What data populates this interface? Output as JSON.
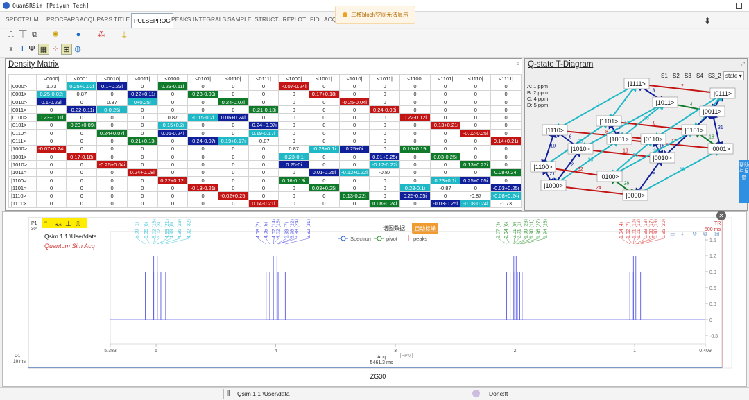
{
  "app": {
    "title": "QuanSRSim [Peiyun Tech]"
  },
  "tabs": [
    "SPECTRUM",
    "PROCPARS",
    "ACQUPARS",
    "TITLE",
    "PULSEPROG",
    "PEAKS",
    "INTEGRALS",
    "SAMPLE",
    "STRUCTURE",
    "PLOT",
    "FID",
    "ACQ"
  ],
  "active_tab": "PULSEPROG",
  "toast": {
    "text": "三核bloch空间无法显示"
  },
  "density": {
    "title": "Density Matrix",
    "cols": [
      "<0000|",
      "<0001|",
      "<0010|",
      "<0011|",
      "<0100|",
      "<0101|",
      "<0110|",
      "<0111|",
      "<1000|",
      "<1001|",
      "<1010|",
      "<1011|",
      "<1100|",
      "<1101|",
      "<1110|",
      "<1111|"
    ],
    "rows": [
      {
        "h": "|0000>",
        "c": [
          [
            "1.73",
            ""
          ],
          [
            "0.25+0.02i",
            "c"
          ],
          [
            "0.1+0.23i",
            "n"
          ],
          [
            "0",
            ""
          ],
          [
            "0.23-0.11i",
            "g"
          ],
          [
            "0",
            ""
          ],
          [
            "0",
            ""
          ],
          [
            "0",
            ""
          ],
          [
            "-0.07-0.24i",
            "r"
          ],
          [
            "0",
            ""
          ],
          [
            "0",
            ""
          ],
          [
            "0",
            ""
          ],
          [
            "0",
            ""
          ],
          [
            "0",
            ""
          ],
          [
            "0",
            ""
          ],
          [
            "0",
            ""
          ]
        ]
      },
      {
        "h": "|0001>",
        "c": [
          [
            "0.25-0.02i",
            "c"
          ],
          [
            "0.87",
            ""
          ],
          [
            "0",
            ""
          ],
          [
            "-0.22+0.11i",
            "n"
          ],
          [
            "0",
            ""
          ],
          [
            "-0.23-0.09i",
            "g"
          ],
          [
            "0",
            ""
          ],
          [
            "0",
            ""
          ],
          [
            "0",
            ""
          ],
          [
            "0.17+0.18i",
            "r"
          ],
          [
            "0",
            ""
          ],
          [
            "0",
            ""
          ],
          [
            "0",
            ""
          ],
          [
            "0",
            ""
          ],
          [
            "0",
            ""
          ],
          [
            "0",
            ""
          ]
        ]
      },
      {
        "h": "|0010>",
        "c": [
          [
            "0.1-0.23i",
            "n"
          ],
          [
            "0",
            ""
          ],
          [
            "0.87",
            ""
          ],
          [
            "0+0.25i",
            "c"
          ],
          [
            "0",
            ""
          ],
          [
            "0",
            ""
          ],
          [
            "0.24-0.07i",
            "g"
          ],
          [
            "0",
            ""
          ],
          [
            "0",
            ""
          ],
          [
            "0",
            ""
          ],
          [
            "-0.25-0.04i",
            "r"
          ],
          [
            "0",
            ""
          ],
          [
            "0",
            ""
          ],
          [
            "0",
            ""
          ],
          [
            "0",
            ""
          ],
          [
            "0",
            ""
          ]
        ]
      },
      {
        "h": "|0011>",
        "c": [
          [
            "0",
            ""
          ],
          [
            "-0.22-0.11i",
            "n"
          ],
          [
            "0-0.25i",
            "c"
          ],
          [
            "0",
            ""
          ],
          [
            "0",
            ""
          ],
          [
            "0",
            ""
          ],
          [
            "0",
            ""
          ],
          [
            "-0.21-0.13i",
            "g"
          ],
          [
            "0",
            ""
          ],
          [
            "0",
            ""
          ],
          [
            "0",
            ""
          ],
          [
            "0.24-0.08i",
            "r"
          ],
          [
            "0",
            ""
          ],
          [
            "0",
            ""
          ],
          [
            "0",
            ""
          ],
          [
            "0",
            ""
          ]
        ]
      },
      {
        "h": "|0100>",
        "c": [
          [
            "0.23+0.11i",
            "g"
          ],
          [
            "0",
            ""
          ],
          [
            "0",
            ""
          ],
          [
            "0",
            ""
          ],
          [
            "0.87",
            ""
          ],
          [
            "-0.15-0.2i",
            "c"
          ],
          [
            "0.06+0.24i",
            "n"
          ],
          [
            "0",
            ""
          ],
          [
            "0",
            ""
          ],
          [
            "0",
            ""
          ],
          [
            "0",
            ""
          ],
          [
            "0",
            ""
          ],
          [
            "0.22-0.12i",
            "r"
          ],
          [
            "0",
            ""
          ],
          [
            "0",
            ""
          ],
          [
            "0",
            ""
          ]
        ]
      },
      {
        "h": "|0101>",
        "c": [
          [
            "0",
            ""
          ],
          [
            "-0.23+0.09i",
            "g"
          ],
          [
            "0",
            ""
          ],
          [
            "0",
            ""
          ],
          [
            "-0.15+0.2i",
            "c"
          ],
          [
            "0",
            ""
          ],
          [
            "0",
            ""
          ],
          [
            "-0.24+0.07i",
            "n"
          ],
          [
            "0",
            ""
          ],
          [
            "0",
            ""
          ],
          [
            "0",
            ""
          ],
          [
            "0",
            ""
          ],
          [
            "0",
            ""
          ],
          [
            "-0.13+0.21i",
            "r"
          ],
          [
            "0",
            ""
          ],
          [
            "0",
            ""
          ]
        ]
      },
      {
        "h": "|0110>",
        "c": [
          [
            "0",
            ""
          ],
          [
            "0",
            ""
          ],
          [
            "0.24+0.07i",
            "g"
          ],
          [
            "0",
            ""
          ],
          [
            "0.06-0.24i",
            "n"
          ],
          [
            "0",
            ""
          ],
          [
            "0",
            ""
          ],
          [
            "0.19-0.17i",
            "c"
          ],
          [
            "0",
            ""
          ],
          [
            "0",
            ""
          ],
          [
            "0",
            ""
          ],
          [
            "0",
            ""
          ],
          [
            "0",
            ""
          ],
          [
            "0",
            ""
          ],
          [
            "-0.02-0.25i",
            "r"
          ],
          [
            "0",
            ""
          ]
        ]
      },
      {
        "h": "|0111>",
        "c": [
          [
            "0",
            ""
          ],
          [
            "0",
            ""
          ],
          [
            "0",
            ""
          ],
          [
            "-0.21+0.13i",
            "g"
          ],
          [
            "0",
            ""
          ],
          [
            "-0.24-0.07i",
            "n"
          ],
          [
            "0.19+0.17i",
            "c"
          ],
          [
            "-0.87",
            ""
          ],
          [
            "0",
            ""
          ],
          [
            "0",
            ""
          ],
          [
            "0",
            ""
          ],
          [
            "0",
            ""
          ],
          [
            "0",
            ""
          ],
          [
            "0",
            ""
          ],
          [
            "0",
            ""
          ],
          [
            "0.14+0.21i",
            "r"
          ]
        ]
      },
      {
        "h": "|1000>",
        "c": [
          [
            "-0.07+0.24i",
            "r"
          ],
          [
            "0",
            ""
          ],
          [
            "0",
            ""
          ],
          [
            "0",
            ""
          ],
          [
            "0",
            ""
          ],
          [
            "0",
            ""
          ],
          [
            "0",
            ""
          ],
          [
            "0",
            ""
          ],
          [
            "0.87",
            ""
          ],
          [
            "-0.23+0.1i",
            "c"
          ],
          [
            "0.25+0i",
            "n"
          ],
          [
            "0",
            ""
          ],
          [
            "0.16+0.19i",
            "g"
          ],
          [
            "0",
            ""
          ],
          [
            "0",
            ""
          ],
          [
            "0",
            ""
          ]
        ]
      },
      {
        "h": "|1001>",
        "c": [
          [
            "0",
            ""
          ],
          [
            "0.17-0.18i",
            "r"
          ],
          [
            "0",
            ""
          ],
          [
            "0",
            ""
          ],
          [
            "0",
            ""
          ],
          [
            "0",
            ""
          ],
          [
            "0",
            ""
          ],
          [
            "0",
            ""
          ],
          [
            "-0.23-0.1i",
            "c"
          ],
          [
            "0",
            ""
          ],
          [
            "0",
            ""
          ],
          [
            "0.01+0.25i",
            "n"
          ],
          [
            "0",
            ""
          ],
          [
            "0.03-0.25i",
            "g"
          ],
          [
            "0",
            ""
          ],
          [
            "0",
            ""
          ]
        ]
      },
      {
        "h": "|1010>",
        "c": [
          [
            "0",
            ""
          ],
          [
            "0",
            ""
          ],
          [
            "-0.25+0.04i",
            "r"
          ],
          [
            "0",
            ""
          ],
          [
            "0",
            ""
          ],
          [
            "0",
            ""
          ],
          [
            "0",
            ""
          ],
          [
            "0",
            ""
          ],
          [
            "0.25-0i",
            "n"
          ],
          [
            "0",
            ""
          ],
          [
            "0",
            ""
          ],
          [
            "-0.12-0.22i",
            "c"
          ],
          [
            "0",
            ""
          ],
          [
            "0",
            ""
          ],
          [
            "0.13+0.22i",
            "g"
          ],
          [
            "0",
            ""
          ]
        ]
      },
      {
        "h": "|1011>",
        "c": [
          [
            "0",
            ""
          ],
          [
            "0",
            ""
          ],
          [
            "0",
            ""
          ],
          [
            "0.24+0.08i",
            "r"
          ],
          [
            "0",
            ""
          ],
          [
            "0",
            ""
          ],
          [
            "0",
            ""
          ],
          [
            "0",
            ""
          ],
          [
            "0",
            ""
          ],
          [
            "0.01-0.25i",
            "n"
          ],
          [
            "-0.12+0.22i",
            "c"
          ],
          [
            "-0.87",
            ""
          ],
          [
            "0",
            ""
          ],
          [
            "0",
            ""
          ],
          [
            "0",
            ""
          ],
          [
            "0.08-0.24i",
            "g"
          ]
        ]
      },
      {
        "h": "|1100>",
        "c": [
          [
            "0",
            ""
          ],
          [
            "0",
            ""
          ],
          [
            "0",
            ""
          ],
          [
            "0",
            ""
          ],
          [
            "0.22+0.12i",
            "r"
          ],
          [
            "0",
            ""
          ],
          [
            "0",
            ""
          ],
          [
            "0",
            ""
          ],
          [
            "0.16-0.19i",
            "g"
          ],
          [
            "0",
            ""
          ],
          [
            "0",
            ""
          ],
          [
            "0",
            ""
          ],
          [
            "0",
            ""
          ],
          [
            "0.23+0.1i",
            "c"
          ],
          [
            "0.25+0.05i",
            "n"
          ],
          [
            "0",
            ""
          ]
        ]
      },
      {
        "h": "|1101>",
        "c": [
          [
            "0",
            ""
          ],
          [
            "0",
            ""
          ],
          [
            "0",
            ""
          ],
          [
            "0",
            ""
          ],
          [
            "0",
            ""
          ],
          [
            "-0.13-0.21i",
            "r"
          ],
          [
            "0",
            ""
          ],
          [
            "0",
            ""
          ],
          [
            "0",
            ""
          ],
          [
            "0.03+0.25i",
            "g"
          ],
          [
            "0",
            ""
          ],
          [
            "0",
            ""
          ],
          [
            "0.23-0.1i",
            "c"
          ],
          [
            "-0.87",
            ""
          ],
          [
            "0",
            ""
          ],
          [
            "-0.03+0.25i",
            "n"
          ]
        ]
      },
      {
        "h": "|1110>",
        "c": [
          [
            "0",
            ""
          ],
          [
            "0",
            ""
          ],
          [
            "0",
            ""
          ],
          [
            "0",
            ""
          ],
          [
            "0",
            ""
          ],
          [
            "0",
            ""
          ],
          [
            "-0.02+0.25i",
            "r"
          ],
          [
            "0",
            ""
          ],
          [
            "0",
            ""
          ],
          [
            "0",
            ""
          ],
          [
            "0.13-0.22i",
            "g"
          ],
          [
            "0",
            ""
          ],
          [
            "0.25-0.05i",
            "n"
          ],
          [
            "0",
            ""
          ],
          [
            "-0.87",
            ""
          ],
          [
            "-0.08+0.24i",
            "c"
          ]
        ]
      },
      {
        "h": "|1111>",
        "c": [
          [
            "0",
            ""
          ],
          [
            "0",
            ""
          ],
          [
            "0",
            ""
          ],
          [
            "0",
            ""
          ],
          [
            "0",
            ""
          ],
          [
            "0",
            ""
          ],
          [
            "0",
            ""
          ],
          [
            "0.14-0.21i",
            "r"
          ],
          [
            "0",
            ""
          ],
          [
            "0",
            ""
          ],
          [
            "0",
            ""
          ],
          [
            "0.08+0.24i",
            "g"
          ],
          [
            "0",
            ""
          ],
          [
            "-0.03-0.25i",
            "n"
          ],
          [
            "-0.08-0.24i",
            "c"
          ],
          [
            "-1.73",
            ""
          ]
        ]
      }
    ]
  },
  "colors": {
    "green": "#0f7a2a",
    "cyan": "#1fb8c7",
    "red": "#c41515",
    "navy": "#10209a",
    "spectrum": "#5a5ae6",
    "accent": "#2f8fe0"
  },
  "qstate": {
    "title": "Q-state T-Diagram",
    "buttons": [
      "S1",
      "S2",
      "S3",
      "S4",
      "S3_2"
    ],
    "select": "state",
    "legend": [
      "A: 1 ppm",
      "B: 2 ppm",
      "C: 4 ppm",
      "D: 5 ppm"
    ],
    "states": [
      "|1111>",
      "|0111>",
      "|1011>",
      "|0011>",
      "|1101>",
      "|1110>",
      "|1010>",
      "|1001>",
      "|0110>",
      "|0101>",
      "|0001>",
      "|1100>",
      "|0010>",
      "|1000>",
      "|0100>",
      "|0000>"
    ],
    "edge_labels": [
      "1",
      "2",
      "3",
      "4",
      "5",
      "6",
      "7",
      "8",
      "9",
      "10",
      "11",
      "12",
      "13",
      "14",
      "15",
      "16",
      "17",
      "18",
      "19",
      "20",
      "21",
      "22",
      "23",
      "24",
      "25",
      "26",
      "27",
      "28",
      "29",
      "30",
      "31",
      "32"
    ]
  },
  "feedback": {
    "label": "帮助与反馈"
  },
  "spectrum": {
    "p1_label": "P1",
    "p1_sub": "30°",
    "path": "Qsim 1 1 \\User\\data",
    "name": "Quantum Sim Acq",
    "tr_label": "TR",
    "tr_value": "500 ms",
    "d1_label": "D1",
    "d1_value": "10 ms",
    "acq_label": "Acq",
    "acq_value": "5461.3 ms",
    "pulse_seq": "ZG30",
    "view_title": "谱图数据",
    "auto_button": "自动标峰",
    "legend": [
      "Spectrum",
      "pivot",
      "peaks"
    ],
    "xlabel": "[PPM]",
    "x_ticks": [
      "5.383",
      "5",
      "4",
      "3",
      "2",
      "1",
      "0.409"
    ],
    "y_ticks": [
      "1.5",
      "1.2",
      "0.9",
      "0.6",
      "0.3",
      "0",
      "-0.3"
    ],
    "peak_labels": [
      [
        "5.09 (1)",
        "5.05 (6)",
        "5.02 (18)",
        "5.02 (3)",
        "4.99 (21)",
        "4.99 (8)",
        "4.96 (29)",
        "4.92 (32)"
      ],
      [
        "4.08 (2)",
        "4.05 (5)",
        "4.02 (14)",
        "4.02 (16)",
        "3.99 (7)",
        "3.98 (22)",
        "3.98 (24)",
        "3.92 (31)"
      ],
      [
        "2.07 (3)",
        "2.04 (6)",
        "2.01 (9)",
        "2.01 (1)",
        "1.99 (23)",
        "1.98 (11)",
        "1.96 (27)",
        "1.94 (28)"
      ],
      [
        "1.04 (4)",
        "1.02 (7)",
        "1.01 (10)",
        "1.01 (12)",
        "0.99 (13)",
        "0.98 (17)",
        "0.98 (19)",
        "0.95 (20)"
      ]
    ]
  },
  "statusbar": {
    "file": "Qsim 1 1 \\User\\data",
    "status": "Done:ft"
  }
}
